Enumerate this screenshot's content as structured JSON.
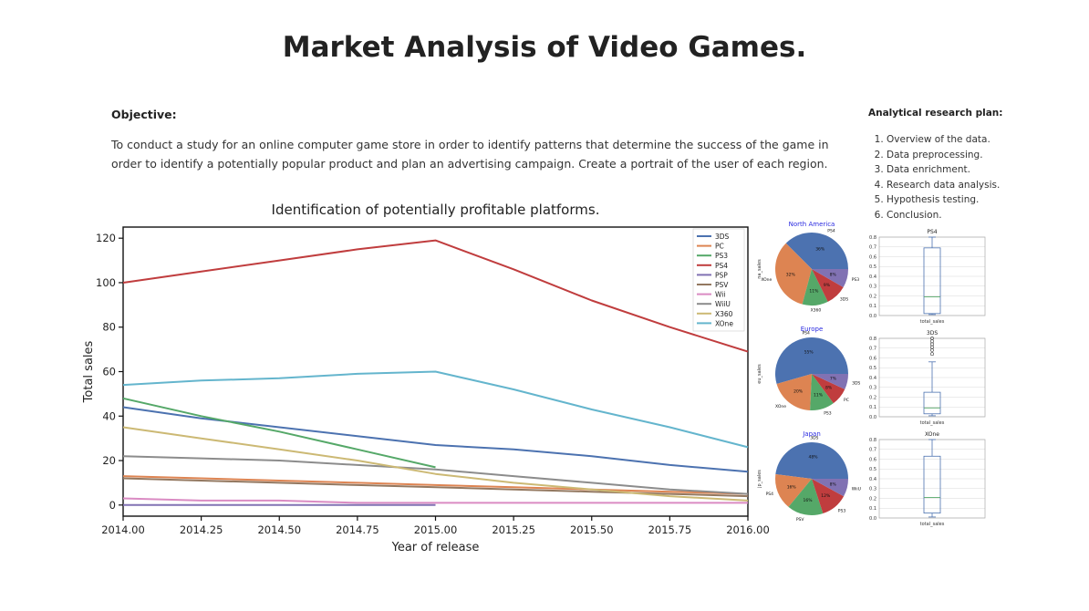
{
  "page": {
    "title": "Market Analysis of Video Games.",
    "objective_heading": "Objective:",
    "objective_text": "To conduct a study for an online computer game store in order to identify patterns that determine the success of the game in order to identify a potentially popular product and plan an advertising campaign. Create a portrait of the user of each region.",
    "plan_heading": "Analytical research plan:",
    "plan_items": [
      "Overview of the data.",
      "Data preprocessing.",
      "Data enrichment.",
      "Research data analysis.",
      "Hypothesis testing.",
      "Conclusion."
    ]
  },
  "chart_data": [
    {
      "type": "line",
      "title": "Identification of potentially profitable platforms.",
      "xlabel": "Year of release",
      "ylabel": "Total sales",
      "xlim": [
        2014.0,
        2016.0
      ],
      "ylim": [
        -5,
        125
      ],
      "xticks": [
        2014.0,
        2014.25,
        2014.5,
        2014.75,
        2015.0,
        2015.25,
        2015.5,
        2015.75,
        2016.0
      ],
      "xtick_labels": [
        "2014.00",
        "2014.25",
        "2014.50",
        "2014.75",
        "2015.00",
        "2015.25",
        "2015.50",
        "2015.75",
        "2016.00"
      ],
      "yticks": [
        0,
        20,
        40,
        60,
        80,
        100,
        120
      ],
      "legend_position": "top-right",
      "x": [
        2014.0,
        2014.25,
        2014.5,
        2014.75,
        2015.0,
        2015.25,
        2015.5,
        2015.75,
        2016.0
      ],
      "series": [
        {
          "name": "3DS",
          "color": "#4c72b0",
          "values": [
            44,
            39,
            35,
            31,
            27,
            25,
            22,
            18,
            15
          ]
        },
        {
          "name": "PC",
          "color": "#dd8452",
          "values": [
            13,
            12,
            11,
            10,
            9,
            8,
            7,
            6,
            5
          ]
        },
        {
          "name": "PS3",
          "color": "#55a868",
          "values": [
            48,
            40,
            33,
            25,
            17,
            null,
            null,
            null,
            null
          ]
        },
        {
          "name": "PS4",
          "color": "#c03d3e",
          "values": [
            100,
            105,
            110,
            115,
            119,
            106,
            92,
            80,
            69
          ]
        },
        {
          "name": "PSP",
          "color": "#8172b3",
          "values": [
            0,
            0,
            0,
            0,
            0,
            null,
            null,
            null,
            null
          ]
        },
        {
          "name": "PSV",
          "color": "#937860",
          "values": [
            12,
            11,
            10,
            9,
            8,
            7,
            6,
            5,
            4
          ]
        },
        {
          "name": "Wii",
          "color": "#da8bc3",
          "values": [
            3,
            2,
            2,
            1,
            1,
            1,
            1,
            1,
            1
          ]
        },
        {
          "name": "WiiU",
          "color": "#8c8c8c",
          "values": [
            22,
            21,
            20,
            18,
            16,
            13,
            10,
            7,
            5
          ]
        },
        {
          "name": "X360",
          "color": "#ccb974",
          "values": [
            35,
            30,
            25,
            20,
            14,
            10,
            7,
            4,
            2
          ]
        },
        {
          "name": "XOne",
          "color": "#64b5cd",
          "values": [
            54,
            56,
            57,
            59,
            60,
            52,
            43,
            35,
            26
          ]
        }
      ]
    },
    {
      "type": "pie",
      "title": "North America",
      "ylabel": "na_sales",
      "slices": [
        {
          "label": "PS4",
          "value": 36,
          "color": "#4c72b0"
        },
        {
          "label": "XOne",
          "value": 32,
          "color": "#dd8452"
        },
        {
          "label": "X360",
          "value": 11,
          "color": "#55a868"
        },
        {
          "label": "3DS",
          "value": 9,
          "color": "#c03d3e"
        },
        {
          "label": "PS3",
          "value": 8,
          "color": "#8172b3"
        }
      ]
    },
    {
      "type": "pie",
      "title": "Europe",
      "ylabel": "eu_sales",
      "slices": [
        {
          "label": "PS4",
          "value": 55,
          "color": "#4c72b0"
        },
        {
          "label": "XOne",
          "value": 20,
          "color": "#dd8452"
        },
        {
          "label": "PS3",
          "value": 11,
          "color": "#55a868"
        },
        {
          "label": "PC",
          "value": 8,
          "color": "#c03d3e"
        },
        {
          "label": "3DS",
          "value": 7,
          "color": "#8172b3"
        }
      ]
    },
    {
      "type": "pie",
      "title": "Japan",
      "ylabel": "jp_sales",
      "slices": [
        {
          "label": "3DS",
          "value": 48,
          "color": "#4c72b0"
        },
        {
          "label": "PS4",
          "value": 16,
          "color": "#dd8452"
        },
        {
          "label": "PSV",
          "value": 16,
          "color": "#55a868"
        },
        {
          "label": "PS3",
          "value": 12,
          "color": "#c03d3e"
        },
        {
          "label": "WiiU",
          "value": 8,
          "color": "#8172b3"
        }
      ]
    },
    {
      "type": "box",
      "title": "PS4",
      "xlabel": "total_sales",
      "ylim": [
        0,
        0.8
      ],
      "yticks": [
        0.0,
        0.1,
        0.2,
        0.3,
        0.4,
        0.5,
        0.6,
        0.7,
        0.8
      ],
      "whisker_low": 0.01,
      "q1": 0.02,
      "median": 0.19,
      "q3": 0.69,
      "whisker_high": 0.8,
      "outliers": []
    },
    {
      "type": "box",
      "title": "3DS",
      "xlabel": "total_sales",
      "ylim": [
        0,
        0.8
      ],
      "yticks": [
        0.0,
        0.1,
        0.2,
        0.3,
        0.4,
        0.5,
        0.6,
        0.7,
        0.8
      ],
      "whisker_low": 0.01,
      "q1": 0.03,
      "median": 0.09,
      "q3": 0.25,
      "whisker_high": 0.56,
      "outliers": [
        0.64,
        0.68,
        0.71,
        0.74,
        0.77,
        0.8
      ]
    },
    {
      "type": "box",
      "title": "XOne",
      "xlabel": "total_sales",
      "ylim": [
        0,
        0.8
      ],
      "yticks": [
        0.0,
        0.1,
        0.2,
        0.3,
        0.4,
        0.5,
        0.6,
        0.7,
        0.8
      ],
      "whisker_low": 0.01,
      "q1": 0.05,
      "median": 0.21,
      "q3": 0.63,
      "whisker_high": 0.8,
      "outliers": []
    }
  ]
}
